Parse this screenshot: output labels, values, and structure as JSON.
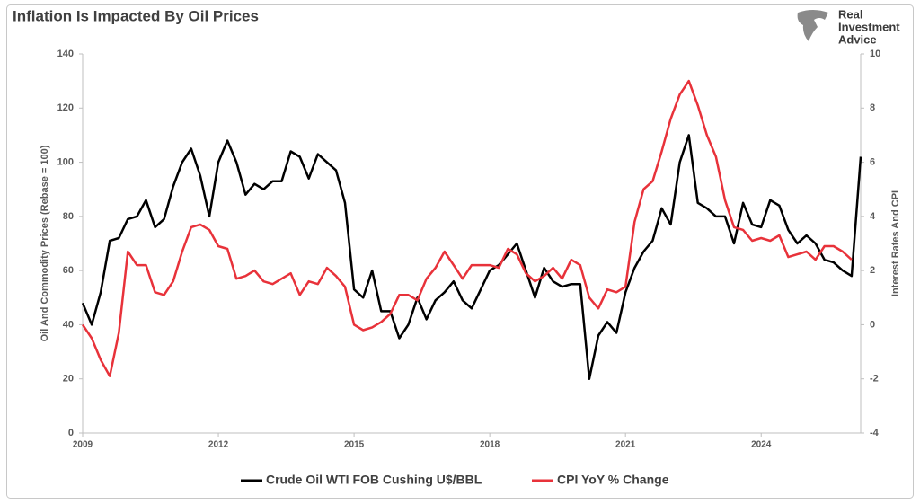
{
  "brand": [
    "Real",
    "Investment",
    "Advice"
  ],
  "chart_data": {
    "type": "line",
    "title": "Inflation Is Impacted By Oil Prices",
    "y_label": "Oil And Commodity Prices (Rebase = 100)",
    "y2_label": "Interest Rates And CPI",
    "legend": "bottom",
    "grid": false,
    "xlim": [
      2009,
      2026.2
    ],
    "xticks": [
      2009,
      2012,
      2015,
      2018,
      2021,
      2024
    ],
    "ylim": [
      0,
      140
    ],
    "yticks": [
      0,
      20,
      40,
      60,
      80,
      100,
      120,
      140
    ],
    "y2lim": [
      -4,
      10
    ],
    "y2ticks": [
      -4,
      -2,
      0,
      2,
      4,
      6,
      8,
      10
    ],
    "x": [
      2009.0,
      2009.2,
      2009.4,
      2009.6,
      2009.8,
      2010.0,
      2010.2,
      2010.4,
      2010.6,
      2010.8,
      2011.0,
      2011.2,
      2011.4,
      2011.6,
      2011.8,
      2012.0,
      2012.2,
      2012.4,
      2012.6,
      2012.8,
      2013.0,
      2013.2,
      2013.4,
      2013.6,
      2013.8,
      2014.0,
      2014.2,
      2014.4,
      2014.6,
      2014.8,
      2015.0,
      2015.2,
      2015.4,
      2015.6,
      2015.8,
      2016.0,
      2016.2,
      2016.4,
      2016.6,
      2016.8,
      2017.0,
      2017.2,
      2017.4,
      2017.6,
      2017.8,
      2018.0,
      2018.2,
      2018.4,
      2018.6,
      2018.8,
      2019.0,
      2019.2,
      2019.4,
      2019.6,
      2019.8,
      2020.0,
      2020.2,
      2020.4,
      2020.6,
      2020.8,
      2021.0,
      2021.2,
      2021.4,
      2021.6,
      2021.8,
      2022.0,
      2022.2,
      2022.4,
      2022.6,
      2022.8,
      2023.0,
      2023.2,
      2023.4,
      2023.6,
      2023.8,
      2024.0,
      2024.2,
      2024.4,
      2024.6,
      2024.8,
      2025.0,
      2025.2,
      2025.4,
      2025.6,
      2025.8,
      2026.0,
      2026.2
    ],
    "series": [
      {
        "name": "Crude Oil WTI FOB Cushing U$/BBL",
        "color": "#000000",
        "axis": "y",
        "values": [
          48,
          40,
          52,
          71,
          72,
          79,
          80,
          86,
          76,
          79,
          91,
          100,
          105,
          95,
          80,
          100,
          108,
          100,
          88,
          92,
          90,
          93,
          93,
          104,
          102,
          94,
          103,
          100,
          97,
          85,
          53,
          50,
          60,
          45,
          45,
          35,
          40,
          50,
          42,
          49,
          52,
          56,
          49,
          46,
          53,
          60,
          62,
          66,
          70,
          60,
          50,
          61,
          56,
          54,
          55,
          55,
          20,
          36,
          41,
          37,
          52,
          61,
          67,
          71,
          83,
          77,
          100,
          110,
          85,
          83,
          80,
          80,
          70,
          85,
          77,
          76,
          86,
          84,
          75,
          70,
          73,
          70,
          64,
          63,
          60,
          58,
          102
        ]
      },
      {
        "name": "CPI YoY % Change",
        "color": "#e8323a",
        "axis": "y2",
        "values": [
          0.0,
          -0.5,
          -1.3,
          -1.9,
          -0.3,
          2.7,
          2.2,
          2.2,
          1.2,
          1.1,
          1.6,
          2.7,
          3.6,
          3.7,
          3.5,
          2.9,
          2.8,
          1.7,
          1.8,
          2.0,
          1.6,
          1.5,
          1.7,
          1.9,
          1.1,
          1.6,
          1.5,
          2.1,
          1.8,
          1.4,
          0.0,
          -0.2,
          -0.1,
          0.1,
          0.4,
          1.1,
          1.1,
          0.9,
          1.7,
          2.1,
          2.7,
          2.2,
          1.7,
          2.2,
          2.2,
          2.2,
          2.1,
          2.8,
          2.6,
          1.9,
          1.6,
          1.8,
          2.1,
          1.7,
          2.4,
          2.2,
          1.0,
          0.6,
          1.3,
          1.2,
          1.4,
          3.8,
          5.0,
          5.3,
          6.4,
          7.6,
          8.5,
          9.0,
          8.1,
          7.0,
          6.2,
          4.6,
          3.6,
          3.5,
          3.1,
          3.2,
          3.1,
          3.3,
          2.5,
          2.6,
          2.7,
          2.4,
          2.9,
          2.9,
          2.7,
          2.4,
          null
        ]
      }
    ]
  }
}
